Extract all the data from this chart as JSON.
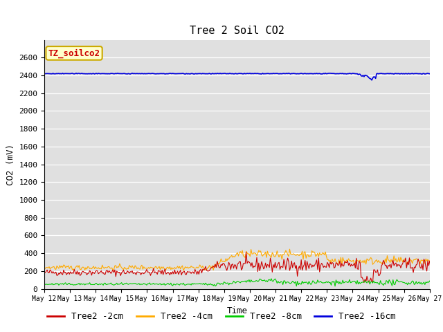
{
  "title": "Tree 2 Soil CO2",
  "xlabel": "Time",
  "ylabel": "CO2 (mV)",
  "ylim": [
    0,
    2800
  ],
  "yticks": [
    0,
    200,
    400,
    600,
    800,
    1000,
    1200,
    1400,
    1600,
    1800,
    2000,
    2200,
    2400,
    2600
  ],
  "legend_label": "TZ_soilco2",
  "bg_color": "#e0e0e0",
  "series": {
    "Tree2 -2cm": {
      "color": "#cc0000",
      "linewidth": 0.8
    },
    "Tree2 -4cm": {
      "color": "#ffaa00",
      "linewidth": 0.8
    },
    "Tree2 -8cm": {
      "color": "#00cc00",
      "linewidth": 0.8
    },
    "Tree2 -16cm": {
      "color": "#0000dd",
      "linewidth": 1.2
    }
  },
  "n_points": 400,
  "xtick_labels": [
    "May 12",
    "May 13",
    "May 14",
    "May 15",
    "May 16",
    "May 17",
    "May 18",
    "May 19",
    "May 20",
    "May 21",
    "May 22",
    "May 23",
    "May 24",
    "May 25",
    "May 26",
    "May 27"
  ],
  "legend_box_facecolor": "#ffffcc",
  "legend_box_edgecolor": "#ccaa00",
  "legend_text_color": "#cc0000",
  "title_fontsize": 11,
  "axis_label_fontsize": 9,
  "tick_fontsize": 8,
  "legend_fontsize": 9
}
